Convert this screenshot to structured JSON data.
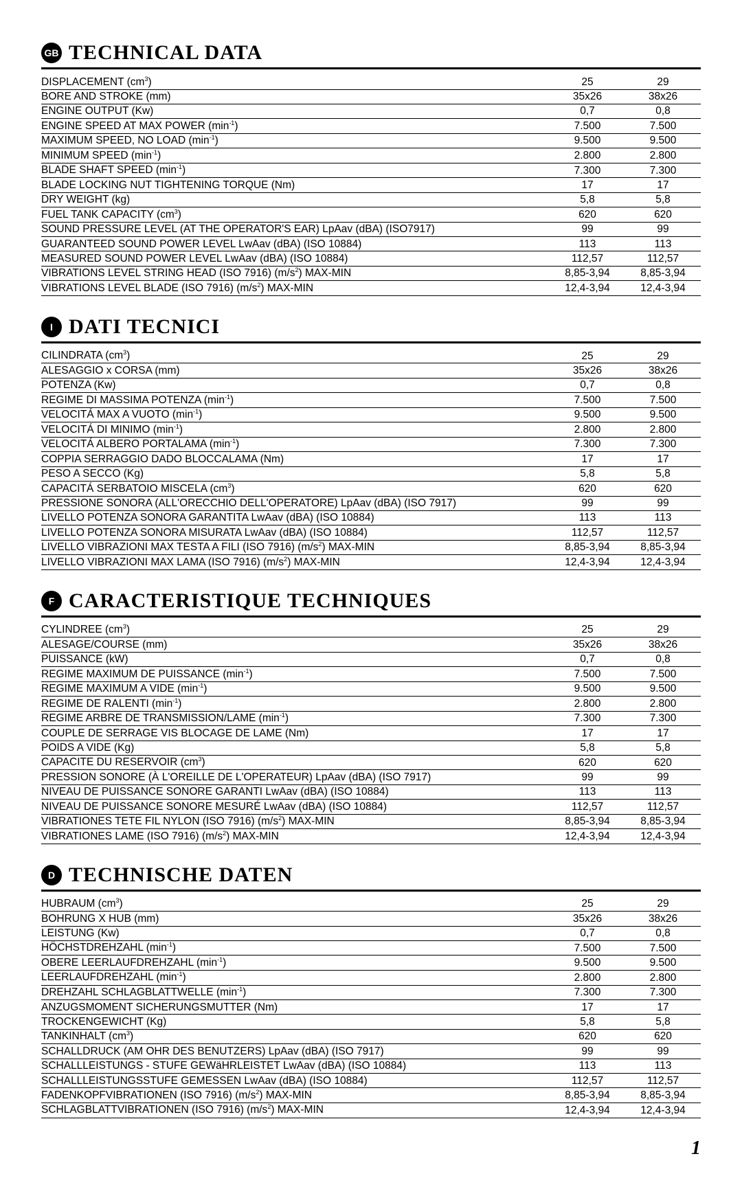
{
  "page_number": "1",
  "sections": [
    {
      "badge": "GB",
      "title": "TECHNICAL DATA",
      "rows": [
        {
          "label": "DISPLACEMENT (cm",
          "sup": "3",
          "tail": ")",
          "v1": "25",
          "v2": "29"
        },
        {
          "label": "BORE AND STROKE (mm)",
          "v1": "35x26",
          "v2": "38x26"
        },
        {
          "label": "ENGINE OUTPUT (Kw)",
          "v1": "0,7",
          "v2": "0,8"
        },
        {
          "label": "ENGINE SPEED AT MAX POWER (min",
          "sup": "-1",
          "tail": ")",
          "v1": "7.500",
          "v2": "7.500"
        },
        {
          "label": "MAXIMUM SPEED, NO LOAD (min",
          "sup": "-1",
          "tail": ")",
          "v1": "9.500",
          "v2": "9.500"
        },
        {
          "label": "MINIMUM SPEED (min",
          "sup": "-1",
          "tail": ")",
          "v1": "2.800",
          "v2": "2.800"
        },
        {
          "label": "BLADE SHAFT SPEED (min",
          "sup": "-1",
          "tail": ")",
          "v1": "7.300",
          "v2": "7.300"
        },
        {
          "label": "BLADE LOCKING NUT TIGHTENING TORQUE (Nm)",
          "v1": "17",
          "v2": "17"
        },
        {
          "label": "DRY WEIGHT (kg)",
          "v1": "5,8",
          "v2": "5,8"
        },
        {
          "label": "FUEL TANK CAPACITY (cm",
          "sup": "3",
          "tail": ")",
          "v1": "620",
          "v2": "620"
        },
        {
          "label": "SOUND PRESSURE LEVEL (AT THE OPERATOR'S EAR) LpAav (dBA) (ISO7917)",
          "v1": "99",
          "v2": "99"
        },
        {
          "label": "GUARANTEED SOUND POWER LEVEL LwAav (dBA) (ISO 10884)",
          "v1": "113",
          "v2": "113"
        },
        {
          "label": "MEASURED SOUND POWER LEVEL LwAav (dBA) (ISO 10884)",
          "v1": "112,57",
          "v2": "112,57"
        },
        {
          "label": "VIBRATIONS LEVEL STRING HEAD (ISO 7916) (m/s",
          "sup": "2",
          "tail": ") MAX-MIN",
          "v1": "8,85-3,94",
          "v2": "8,85-3,94"
        },
        {
          "label": "VIBRATIONS LEVEL BLADE (ISO 7916) (m/s",
          "sup": "2",
          "tail": ") MAX-MIN",
          "v1": "12,4-3,94",
          "v2": "12,4-3,94"
        }
      ]
    },
    {
      "badge": "I",
      "title": "DATI TECNICI",
      "rows": [
        {
          "label": "CILINDRATA (cm",
          "sup": "3",
          "tail": ")",
          "v1": "25",
          "v2": "29"
        },
        {
          "label": "ALESAGGIO x CORSA (mm)",
          "v1": "35x26",
          "v2": "38x26"
        },
        {
          "label": "POTENZA (Kw)",
          "v1": "0,7",
          "v2": "0,8"
        },
        {
          "label": "REGIME DI MASSIMA POTENZA (min",
          "sup": "-1",
          "tail": ")",
          "v1": "7.500",
          "v2": "7.500"
        },
        {
          "label": "VELOCITÁ MAX A VUOTO (min",
          "sup": "-1",
          "tail": ")",
          "v1": "9.500",
          "v2": "9.500"
        },
        {
          "label": "VELOCITÁ DI MINIMO (min",
          "sup": "-1",
          "tail": ")",
          "v1": "2.800",
          "v2": "2.800"
        },
        {
          "label": "VELOCITÁ ALBERO PORTALAMA (min",
          "sup": "-1",
          "tail": ")",
          "v1": "7.300",
          "v2": "7.300"
        },
        {
          "label": "COPPIA SERRAGGIO DADO BLOCCALAMA (Nm)",
          "v1": "17",
          "v2": "17"
        },
        {
          "label": "PESO A SECCO (Kg)",
          "v1": "5,8",
          "v2": "5,8"
        },
        {
          "label": "CAPACITÁ SERBATOIO MISCELA (cm",
          "sup": "3",
          "tail": ")",
          "v1": "620",
          "v2": "620"
        },
        {
          "label": "PRESSIONE SONORA (ALL'ORECCHIO DELL'OPERATORE) LpAav (dBA) (ISO 7917)",
          "v1": "99",
          "v2": "99"
        },
        {
          "label": "LIVELLO POTENZA SONORA GARANTITA LwAav (dBA) (ISO 10884)",
          "v1": "113",
          "v2": "113"
        },
        {
          "label": "LIVELLO POTENZA SONORA MISURATA LwAav (dBA) (ISO 10884)",
          "v1": "112,57",
          "v2": "112,57"
        },
        {
          "label": "LIVELLO VIBRAZIONI MAX TESTA A FILI (ISO 7916) (m/s",
          "sup": "2",
          "tail": ") MAX-MIN",
          "v1": "8,85-3,94",
          "v2": "8,85-3,94"
        },
        {
          "label": "LIVELLO VIBRAZIONI MAX  LAMA (ISO 7916) (m/s",
          "sup": "2",
          "tail": ") MAX-MIN",
          "v1": "12,4-3,94",
          "v2": "12,4-3,94"
        }
      ]
    },
    {
      "badge": "F",
      "title": "CARACTERISTIQUE TECHNIQUES",
      "rows": [
        {
          "label": "CYLINDREE (cm",
          "sup": "3",
          "tail": ")",
          "v1": "25",
          "v2": "29"
        },
        {
          "label": "ALESAGE/COURSE (mm)",
          "v1": "35x26",
          "v2": "38x26"
        },
        {
          "label": "PUISSANCE (kW)",
          "v1": "0,7",
          "v2": "0,8"
        },
        {
          "label": "REGIME MAXIMUM DE PUISSANCE (min",
          "sup": "-1",
          "tail": ")",
          "v1": "7.500",
          "v2": "7.500"
        },
        {
          "label": "REGIME MAXIMUM A VIDE (min",
          "sup": "-1",
          "tail": ")",
          "v1": "9.500",
          "v2": "9.500"
        },
        {
          "label": "REGIME DE RALENTI (min",
          "sup": "-1",
          "tail": ")",
          "v1": "2.800",
          "v2": "2.800"
        },
        {
          "label": "REGIME ARBRE DE TRANSMISSION/LAME (min",
          "sup": "-1",
          "tail": ")",
          "v1": "7.300",
          "v2": "7.300"
        },
        {
          "label": "COUPLE DE SERRAGE VIS BLOCAGE DE LAME (Nm)",
          "v1": "17",
          "v2": "17"
        },
        {
          "label": "POIDS A VIDE (Kg)",
          "v1": "5,8",
          "v2": "5,8"
        },
        {
          "label": "CAPACITE DU RESERVOIR (cm",
          "sup": "3",
          "tail": ")",
          "v1": "620",
          "v2": "620"
        },
        {
          "label": "PRESSION SONORE (À L'OREILLE DE L'OPERATEUR) LpAav (dBA) (ISO 7917)",
          "v1": "99",
          "v2": "99"
        },
        {
          "label": "NIVEAU DE PUISSANCE SONORE GARANTI LwAav (dBA) (ISO 10884)",
          "v1": "113",
          "v2": "113"
        },
        {
          "label": "NIVEAU DE PUISSANCE SONORE MESURÉ LwAav (dBA) (ISO 10884)",
          "v1": "112,57",
          "v2": "112,57"
        },
        {
          "label": "VIBRATIONES TETE FIL NYLON (ISO 7916) (m/s",
          "sup": "2",
          "tail": ") MAX-MIN",
          "v1": "8,85-3,94",
          "v2": "8,85-3,94"
        },
        {
          "label": "VIBRATIONES LAME (ISO 7916)  (m/s",
          "sup": "2",
          "tail": ") MAX-MIN",
          "v1": "12,4-3,94",
          "v2": "12,4-3,94"
        }
      ]
    },
    {
      "badge": "D",
      "title": "TECHNISCHE DATEN",
      "rows": [
        {
          "label": "HUBRAUM (cm",
          "sup": "3",
          "tail": ")",
          "v1": "25",
          "v2": "29"
        },
        {
          "label": "BOHRUNG X HUB (mm)",
          "v1": "35x26",
          "v2": "38x26"
        },
        {
          "label": "LEISTUNG (Kw)",
          "v1": "0,7",
          "v2": "0,8"
        },
        {
          "label": "HÖCHSTDREHZAHL (min",
          "sup": "-1",
          "tail": ")",
          "v1": "7.500",
          "v2": "7.500"
        },
        {
          "label": "OBERE LEERLAUFDREHZAHL (min",
          "sup": "-1",
          "tail": ")",
          "v1": "9.500",
          "v2": "9.500"
        },
        {
          "label": "LEERLAUFDREHZAHL (min",
          "sup": "-1",
          "tail": ")",
          "v1": "2.800",
          "v2": "2.800"
        },
        {
          "label": "DREHZAHL SCHLAGBLATTWELLE (min",
          "sup": "-1",
          "tail": ")",
          "v1": "7.300",
          "v2": "7.300"
        },
        {
          "label": "ANZUGSMOMENT SICHERUNGSMUTTER (Nm)",
          "v1": "17",
          "v2": "17"
        },
        {
          "label": "TROCKENGEWICHT (Kg)",
          "v1": "5,8",
          "v2": "5,8"
        },
        {
          "label": "TANKINHALT (cm",
          "sup": "3",
          "tail": ")",
          "v1": "620",
          "v2": "620"
        },
        {
          "label": "SCHALLDRUCK (AM OHR DES BENUTZERS) LpAav (dBA) (ISO 7917)",
          "v1": "99",
          "v2": "99"
        },
        {
          "label": "SCHALLLEISTUNGS - STUFE GEWäHRLEISTET LwAav (dBA) (ISO 10884)",
          "v1": "113",
          "v2": "113"
        },
        {
          "label": "SCHALLLEISTUNGSSTUFE GEMESSEN LwAav (dBA) (ISO 10884)",
          "v1": "112,57",
          "v2": "112,57"
        },
        {
          "label": "FADENKOPFVIBRATIONEN (ISO 7916) (m/s",
          "sup": "2",
          "tail": ") MAX-MIN",
          "v1": "8,85-3,94",
          "v2": "8,85-3,94"
        },
        {
          "label": "SCHLAGBLATTVIBRATIONEN (ISO 7916) (m/s",
          "sup": "2",
          "tail": ") MAX-MIN",
          "v1": "12,4-3,94",
          "v2": "12,4-3,94"
        }
      ]
    }
  ]
}
